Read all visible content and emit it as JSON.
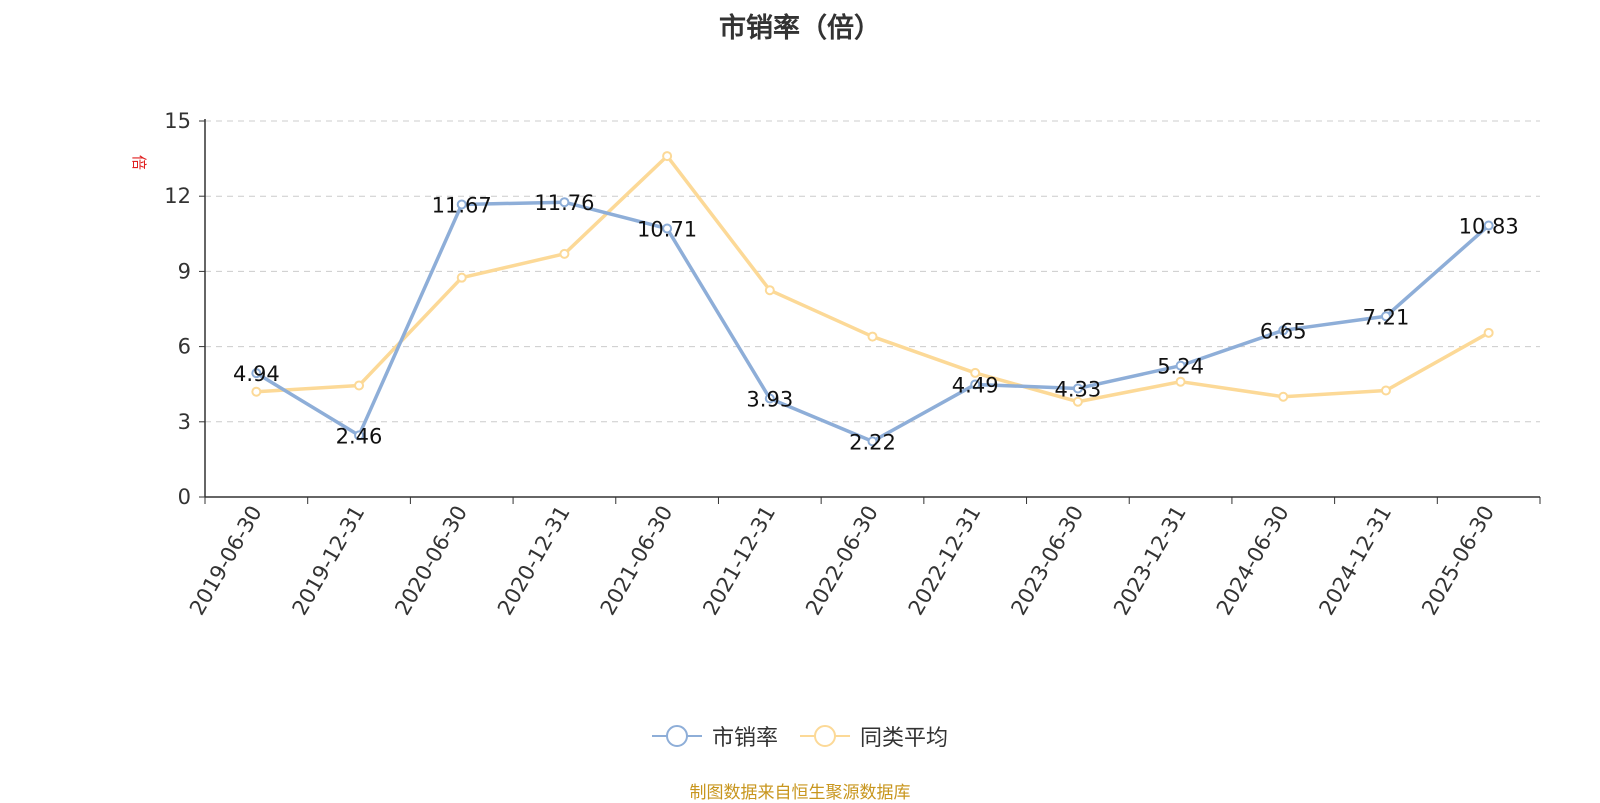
{
  "chart_data": {
    "type": "line",
    "title": "市销率（倍）",
    "ylabel": "倍",
    "ylim": [
      0,
      15
    ],
    "yticks": [
      0,
      3,
      6,
      9,
      12,
      15
    ],
    "grid": true,
    "legend_position": "bottom-center",
    "categories": [
      "2019-06-30",
      "2019-12-31",
      "2020-06-30",
      "2020-12-31",
      "2021-06-30",
      "2021-12-31",
      "2022-06-30",
      "2022-12-31",
      "2023-06-30",
      "2023-12-31",
      "2024-06-30",
      "2024-12-31",
      "2025-06-30"
    ],
    "series": [
      {
        "name": "市销率",
        "color": "#8eaed8",
        "show_labels": true,
        "values": [
          4.94,
          2.46,
          11.67,
          11.76,
          10.71,
          3.93,
          2.22,
          4.49,
          4.33,
          5.24,
          6.65,
          7.21,
          10.83
        ]
      },
      {
        "name": "同类平均",
        "color": "#fcd997",
        "show_labels": false,
        "values": [
          4.2,
          4.45,
          8.75,
          9.7,
          13.6,
          8.25,
          6.4,
          4.95,
          3.8,
          4.6,
          4.0,
          4.25,
          6.55
        ]
      }
    ],
    "source": "制图数据来自恒生聚源数据库"
  }
}
